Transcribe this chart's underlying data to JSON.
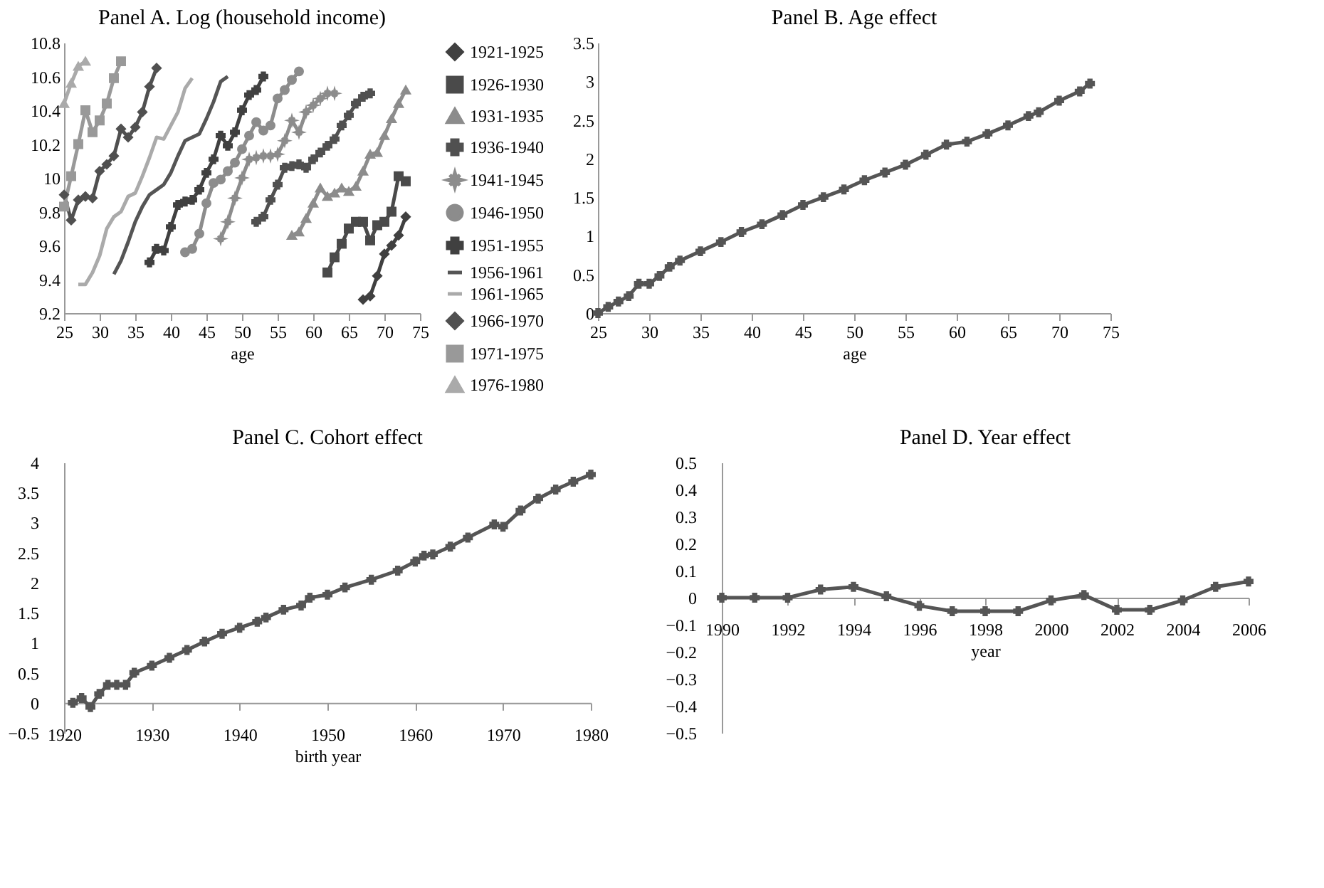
{
  "chart_data": [
    {
      "type": "line",
      "title": "Panel A. Log (household income)",
      "xlabel": "age",
      "xlim": [
        25,
        75
      ],
      "xticks": [
        25,
        30,
        35,
        40,
        45,
        50,
        55,
        60,
        65,
        70,
        75
      ],
      "ylim": [
        9.2,
        10.8
      ],
      "yticks": [
        9.2,
        9.4,
        9.6,
        9.8,
        10,
        10.2,
        10.4,
        10.6,
        10.8
      ],
      "grid": false,
      "legend": "right",
      "line_style": "solid",
      "series": [
        {
          "name": "1921-1925",
          "color": "#404040",
          "marker": "diamond",
          "x": [
            67,
            68,
            69,
            70,
            71,
            72,
            73
          ],
          "values": [
            9.28,
            9.3,
            9.42,
            9.55,
            9.6,
            9.66,
            9.77
          ]
        },
        {
          "name": "1926-1930",
          "color": "#4a4a4a",
          "marker": "square",
          "x": [
            62,
            63,
            64,
            65,
            66,
            67,
            68,
            69,
            70,
            71,
            72,
            73
          ],
          "values": [
            9.44,
            9.53,
            9.61,
            9.7,
            9.74,
            9.74,
            9.63,
            9.72,
            9.74,
            9.8,
            10.01,
            9.98
          ]
        },
        {
          "name": "1931-1935",
          "color": "#8c8c8c",
          "marker": "triangle",
          "x": [
            57,
            58,
            59,
            60,
            61,
            62,
            63,
            64,
            65,
            66,
            67,
            68,
            69,
            70,
            71,
            72,
            73
          ],
          "values": [
            9.66,
            9.68,
            9.76,
            9.85,
            9.94,
            9.89,
            9.91,
            9.94,
            9.92,
            9.95,
            10.04,
            10.14,
            10.15,
            10.25,
            10.35,
            10.44,
            10.52
          ]
        },
        {
          "name": "1936-1940",
          "color": "#505050",
          "marker": "cross",
          "x": [
            52,
            53,
            54,
            55,
            56,
            57,
            58,
            59,
            60,
            61,
            62,
            63,
            64,
            65,
            66,
            67,
            68
          ],
          "values": [
            9.74,
            9.77,
            9.87,
            9.96,
            10.06,
            10.07,
            10.08,
            10.06,
            10.11,
            10.15,
            10.19,
            10.23,
            10.31,
            10.37,
            10.44,
            10.48,
            10.5
          ]
        },
        {
          "name": "1941-1945",
          "color": "#8c8c8c",
          "marker": "star",
          "x": [
            47,
            48,
            49,
            50,
            51,
            52,
            53,
            54,
            55,
            56,
            57,
            58,
            59,
            60,
            61,
            62,
            63
          ],
          "values": [
            9.64,
            9.74,
            9.88,
            10.0,
            10.11,
            10.12,
            10.13,
            10.13,
            10.14,
            10.22,
            10.34,
            10.27,
            10.39,
            10.43,
            10.47,
            10.5,
            10.5
          ]
        },
        {
          "name": "1946-1950",
          "color": "#8c8c8c",
          "marker": "circle",
          "x": [
            42,
            43,
            44,
            45,
            46,
            47,
            48,
            49,
            50,
            51,
            52,
            53,
            54,
            55,
            56,
            57,
            58
          ],
          "values": [
            9.56,
            9.58,
            9.67,
            9.85,
            9.97,
            9.99,
            10.04,
            10.09,
            10.17,
            10.25,
            10.33,
            10.28,
            10.31,
            10.47,
            10.52,
            10.58,
            10.63
          ]
        },
        {
          "name": "1951-1955",
          "color": "#404040",
          "marker": "cross",
          "x": [
            37,
            38,
            39,
            40,
            41,
            42,
            43,
            44,
            45,
            46,
            47,
            48,
            49,
            50,
            51,
            52,
            53
          ],
          "values": [
            9.5,
            9.58,
            9.57,
            9.71,
            9.84,
            9.86,
            9.87,
            9.93,
            10.03,
            10.11,
            10.25,
            10.19,
            10.27,
            10.4,
            10.49,
            10.52,
            10.6
          ]
        },
        {
          "name": "1956-1961",
          "color": "#555555",
          "marker": "none",
          "x": [
            32,
            33,
            34,
            35,
            36,
            37,
            38,
            39,
            40,
            41,
            42,
            43,
            44,
            45,
            46,
            47,
            48
          ],
          "values": [
            9.43,
            9.51,
            9.62,
            9.74,
            9.83,
            9.9,
            9.93,
            9.96,
            10.03,
            10.13,
            10.22,
            10.24,
            10.26,
            10.35,
            10.45,
            10.57,
            10.6
          ]
        },
        {
          "name": "1961-1965",
          "color": "#aaaaaa",
          "marker": "none",
          "x": [
            27,
            28,
            29,
            30,
            31,
            32,
            33,
            34,
            35,
            36,
            37,
            38,
            39,
            40,
            41,
            42,
            43
          ],
          "values": [
            9.37,
            9.37,
            9.44,
            9.54,
            9.7,
            9.77,
            9.8,
            9.89,
            9.91,
            10.01,
            10.12,
            10.24,
            10.23,
            10.31,
            10.39,
            10.53,
            10.59
          ]
        },
        {
          "name": "1966-1970",
          "color": "#505050",
          "marker": "diamond",
          "x": [
            25,
            26,
            27,
            28,
            29,
            30,
            31,
            32,
            33,
            34,
            35,
            36,
            37,
            38
          ],
          "values": [
            9.9,
            9.75,
            9.87,
            9.89,
            9.88,
            10.04,
            10.08,
            10.13,
            10.29,
            10.24,
            10.3,
            10.39,
            10.54,
            10.65
          ]
        },
        {
          "name": "1971-1975",
          "color": "#999999",
          "marker": "square",
          "x": [
            25,
            26,
            27,
            28,
            29,
            30,
            31,
            32,
            33
          ],
          "values": [
            9.83,
            10.01,
            10.2,
            10.4,
            10.27,
            10.34,
            10.44,
            10.59,
            10.69
          ]
        },
        {
          "name": "1976-1980",
          "color": "#aaaaaa",
          "marker": "triangle",
          "x": [
            25,
            26,
            27,
            28
          ],
          "values": [
            10.44,
            10.56,
            10.66,
            10.69
          ]
        }
      ]
    },
    {
      "type": "line",
      "title": "Panel B. Age effect",
      "xlabel": "age",
      "xlim": [
        25,
        75
      ],
      "xticks": [
        25,
        30,
        35,
        40,
        45,
        50,
        55,
        60,
        65,
        70,
        75
      ],
      "ylim": [
        0,
        3.5
      ],
      "yticks": [
        0,
        0.5,
        1,
        1.5,
        2,
        2.5,
        3,
        3.5
      ],
      "grid": false,
      "marker": "cross",
      "line_style": "solid",
      "series": [
        {
          "color": "#555555",
          "x": [
            25,
            26,
            27,
            28,
            29,
            30,
            31,
            32,
            33,
            35,
            37,
            39,
            41,
            43,
            45,
            47,
            49,
            51,
            53,
            55,
            57,
            59,
            61,
            63,
            65,
            67,
            68,
            70,
            72,
            73
          ],
          "values": [
            0,
            0.08,
            0.15,
            0.22,
            0.38,
            0.38,
            0.48,
            0.6,
            0.68,
            0.8,
            0.92,
            1.05,
            1.15,
            1.27,
            1.4,
            1.5,
            1.6,
            1.72,
            1.82,
            1.92,
            2.05,
            2.18,
            2.22,
            2.32,
            2.43,
            2.55,
            2.6,
            2.75,
            2.87,
            2.97
          ]
        }
      ]
    },
    {
      "type": "line",
      "title": "Panel C. Cohort effect",
      "xlabel": "birth year",
      "xlim": [
        1920,
        1980
      ],
      "xticks": [
        1920,
        1930,
        1940,
        1950,
        1960,
        1970,
        1980
      ],
      "ylim": [
        -0.5,
        4
      ],
      "yticks": [
        -0.5,
        0,
        0.5,
        1,
        1.5,
        2,
        2.5,
        3,
        3.5,
        4
      ],
      "grid": false,
      "marker": "cross",
      "line_style": "solid",
      "series": [
        {
          "color": "#555555",
          "x": [
            1921,
            1922,
            1923,
            1924,
            1925,
            1926,
            1927,
            1928,
            1930,
            1932,
            1934,
            1936,
            1938,
            1940,
            1942,
            1943,
            1945,
            1947,
            1948,
            1950,
            1952,
            1955,
            1958,
            1960,
            1961,
            1962,
            1964,
            1966,
            1969,
            1970,
            1972,
            1974,
            1976,
            1978,
            1980
          ],
          "values": [
            0,
            0.08,
            -0.07,
            0.15,
            0.3,
            0.3,
            0.3,
            0.5,
            0.62,
            0.75,
            0.88,
            1.02,
            1.15,
            1.25,
            1.35,
            1.42,
            1.55,
            1.62,
            1.75,
            1.8,
            1.92,
            2.05,
            2.2,
            2.35,
            2.45,
            2.47,
            2.6,
            2.75,
            2.97,
            2.93,
            3.2,
            3.4,
            3.55,
            3.68,
            3.8
          ]
        }
      ]
    },
    {
      "type": "line",
      "title": "Panel D. Year effect",
      "xlabel": "year",
      "xlim": [
        1990,
        2006
      ],
      "xticks": [
        1990,
        1992,
        1994,
        1996,
        1998,
        2000,
        2002,
        2004,
        2006
      ],
      "ylim": [
        -0.5,
        0.5
      ],
      "yticks": [
        -0.5,
        -0.4,
        -0.3,
        -0.2,
        -0.1,
        0,
        0.1,
        0.2,
        0.3,
        0.4,
        0.5
      ],
      "grid": false,
      "marker": "cross",
      "line_style": "solid",
      "series": [
        {
          "color": "#555555",
          "x": [
            1990,
            1991,
            1992,
            1993,
            1994,
            1995,
            1996,
            1997,
            1998,
            1999,
            2000,
            2001,
            2002,
            2003,
            2004,
            2005,
            2006
          ],
          "values": [
            0,
            0,
            0,
            0.03,
            0.04,
            0.005,
            -0.03,
            -0.05,
            -0.05,
            -0.05,
            -0.01,
            0.01,
            -0.045,
            -0.045,
            -0.01,
            0.04,
            0.06
          ]
        }
      ]
    }
  ]
}
